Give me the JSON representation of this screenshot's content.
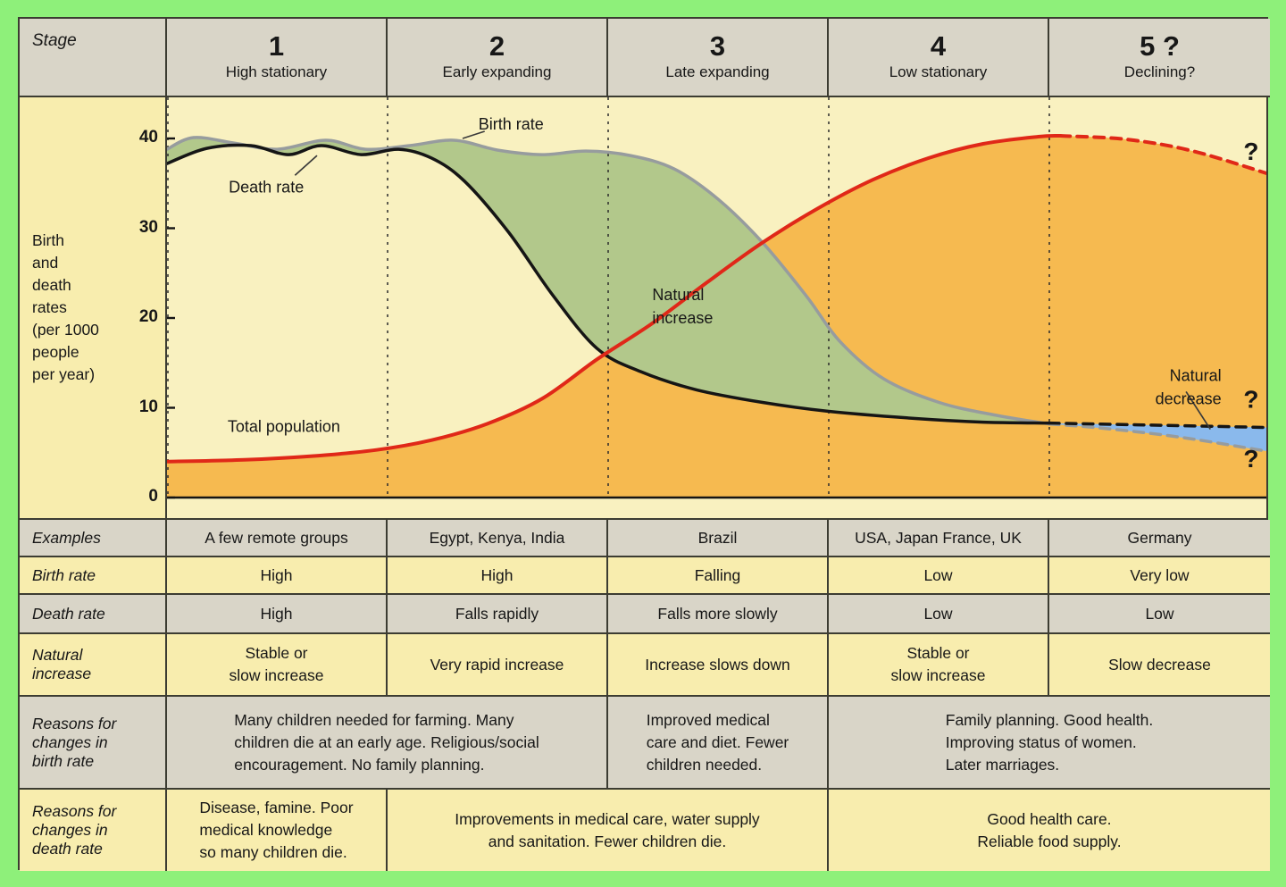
{
  "palette": {
    "page_bg": "#8ef07a",
    "grid_line": "#3c3c32",
    "cell_gray": "#d9d5c8",
    "cell_yellow": "#f8edae",
    "chart_bg": "#f9f1c0",
    "area_orange": "#f6ba50",
    "area_green": "#b2c88b",
    "area_blue": "#8ab9ec",
    "line_red": "#e02818",
    "line_gray": "#979c9e",
    "line_black": "#151515",
    "text": "#171717"
  },
  "header": {
    "stage_label": "Stage",
    "stages": [
      {
        "num": "1",
        "name": "High stationary"
      },
      {
        "num": "2",
        "name": "Early expanding"
      },
      {
        "num": "3",
        "name": "Late expanding"
      },
      {
        "num": "4",
        "name": "Low stationary"
      },
      {
        "num": "5 ?",
        "name": "Declining?"
      }
    ]
  },
  "chart_data": {
    "type": "line+area",
    "title": "Demographic transition model",
    "ylabel": "Birth\nand\ndeath\nrates\n(per 1000\npeople\nper year)",
    "yticks": [
      0,
      10,
      20,
      30,
      40
    ],
    "ylim": [
      0,
      44.5
    ],
    "x_axis": "five equal stages (1-5), dashed dividers between stages",
    "series": [
      {
        "name": "Birth rate",
        "color": "#979c9e",
        "width": 3.5,
        "dash_from": 4,
        "points": [
          [
            0,
            38.8
          ],
          [
            0.12,
            40.1
          ],
          [
            0.3,
            39.5
          ],
          [
            0.5,
            38.8
          ],
          [
            0.72,
            39.8
          ],
          [
            0.9,
            38.8
          ],
          [
            1.1,
            39.2
          ],
          [
            1.3,
            39.8
          ],
          [
            1.5,
            38.7
          ],
          [
            1.7,
            38.2
          ],
          [
            1.9,
            38.6
          ],
          [
            2.1,
            38.1
          ],
          [
            2.3,
            36.6
          ],
          [
            2.5,
            33.2
          ],
          [
            2.7,
            28.4
          ],
          [
            2.9,
            22.4
          ],
          [
            3.05,
            17.4
          ],
          [
            3.25,
            13.2
          ],
          [
            3.5,
            10.6
          ],
          [
            3.75,
            9.2
          ],
          [
            4,
            8.2
          ],
          [
            4.25,
            7.7
          ],
          [
            4.6,
            6.7
          ],
          [
            5,
            5.1
          ]
        ]
      },
      {
        "name": "Death rate",
        "color": "#151515",
        "width": 3.5,
        "dash_from": 4,
        "points": [
          [
            0,
            37.2
          ],
          [
            0.18,
            38.9
          ],
          [
            0.38,
            39.2
          ],
          [
            0.55,
            38.2
          ],
          [
            0.7,
            39.2
          ],
          [
            0.88,
            38.2
          ],
          [
            1.05,
            38.8
          ],
          [
            1.2,
            37.8
          ],
          [
            1.35,
            35.2
          ],
          [
            1.55,
            29.5
          ],
          [
            1.75,
            22.5
          ],
          [
            1.95,
            16.6
          ],
          [
            2.15,
            14
          ],
          [
            2.4,
            12
          ],
          [
            2.7,
            10.6
          ],
          [
            3,
            9.6
          ],
          [
            3.4,
            8.8
          ],
          [
            3.7,
            8.4
          ],
          [
            4,
            8.3
          ],
          [
            4.4,
            8.1
          ],
          [
            5,
            7.8
          ]
        ]
      },
      {
        "name": "Total population",
        "color": "#e02818",
        "width": 4,
        "dash_from": 4.05,
        "points": [
          [
            0,
            4
          ],
          [
            0.35,
            4.2
          ],
          [
            0.65,
            4.6
          ],
          [
            0.95,
            5.3
          ],
          [
            1.2,
            6.4
          ],
          [
            1.45,
            8.2
          ],
          [
            1.7,
            11
          ],
          [
            1.95,
            15.4
          ],
          [
            2.2,
            19.4
          ],
          [
            2.45,
            24
          ],
          [
            2.7,
            28.4
          ],
          [
            2.95,
            32.2
          ],
          [
            3.2,
            35.4
          ],
          [
            3.45,
            37.8
          ],
          [
            3.7,
            39.4
          ],
          [
            3.95,
            40.2
          ],
          [
            4.05,
            40.3
          ],
          [
            4.35,
            39.9
          ],
          [
            4.65,
            38.6
          ],
          [
            5,
            36
          ]
        ]
      }
    ],
    "areas": [
      {
        "name": "population-fill",
        "color": "#f6ba50",
        "top": "Total population",
        "bottom": "baseline",
        "from": 0,
        "to": 5
      },
      {
        "name": "natural-increase",
        "color": "#b2c88b",
        "top": "Birth rate",
        "bottom": "Death rate",
        "from": 0,
        "to": 4
      },
      {
        "name": "natural-decrease",
        "color": "#8ab9ec",
        "top": "Death rate",
        "bottom": "Birth rate",
        "from": 4,
        "to": 5
      }
    ],
    "annotations": [
      {
        "text": "Birth rate",
        "u": 1.56,
        "r": 41.6,
        "anchor": "middle"
      },
      {
        "text": "Death rate",
        "u": 0.45,
        "r": 34.6,
        "anchor": "middle"
      },
      {
        "text": "Total population",
        "u": 0.53,
        "r": 7.9,
        "anchor": "middle"
      },
      {
        "text": "Natural\nincrease",
        "u": 2.2,
        "r": 22.6,
        "anchor": "start"
      },
      {
        "text": "Natural\ndecrease",
        "u": 4.78,
        "r": 13.6,
        "anchor": "end"
      },
      {
        "text": "?",
        "u": 4.88,
        "r": 38.2,
        "anchor": "start",
        "big": true
      },
      {
        "text": "?",
        "u": 4.88,
        "r": 10.6,
        "anchor": "start",
        "big": true
      },
      {
        "text": "?",
        "u": 4.88,
        "r": 4.0,
        "anchor": "start",
        "big": true
      }
    ],
    "leaders": [
      {
        "from": [
          1.44,
          40.8
        ],
        "to": [
          1.34,
          40.0
        ]
      },
      {
        "from": [
          0.58,
          35.9
        ],
        "to": [
          0.68,
          38.1
        ]
      },
      {
        "from": [
          4.62,
          11.8
        ],
        "to": [
          4.73,
          7.6
        ]
      }
    ]
  },
  "table": {
    "rows": [
      {
        "label": "Examples",
        "bg": "gray",
        "cells": [
          {
            "text": "A few remote groups",
            "span": 1
          },
          {
            "text": "Egypt, Kenya, India",
            "span": 1
          },
          {
            "text": "Brazil",
            "span": 1
          },
          {
            "text": "USA, Japan France, UK",
            "span": 1
          },
          {
            "text": "Germany",
            "span": 1
          }
        ]
      },
      {
        "label": "Birth rate",
        "bg": "yellow",
        "cells": [
          {
            "text": "High",
            "span": 1
          },
          {
            "text": "High",
            "span": 1
          },
          {
            "text": "Falling",
            "span": 1
          },
          {
            "text": "Low",
            "span": 1
          },
          {
            "text": "Very low",
            "span": 1
          }
        ]
      },
      {
        "label": "Death rate",
        "bg": "gray",
        "cells": [
          {
            "text": "High",
            "span": 1
          },
          {
            "text": "Falls rapidly",
            "span": 1
          },
          {
            "text": "Falls more slowly",
            "span": 1
          },
          {
            "text": "Low",
            "span": 1
          },
          {
            "text": "Low",
            "span": 1
          }
        ]
      },
      {
        "label": "Natural\nincrease",
        "bg": "yellow",
        "cells": [
          {
            "text": "Stable or\nslow increase",
            "span": 1
          },
          {
            "text": "Very rapid increase",
            "span": 1
          },
          {
            "text": "Increase slows down",
            "span": 1
          },
          {
            "text": "Stable or\nslow increase",
            "span": 1
          },
          {
            "text": "Slow decrease",
            "span": 1
          }
        ]
      },
      {
        "label": "Reasons for\nchanges in\nbirth rate",
        "bg": "gray",
        "cells": [
          {
            "text": "Many children needed for farming. Many\nchildren die at an early age. Religious/social\nencouragement. No family planning.",
            "span": 2,
            "align": "left"
          },
          {
            "text": "Improved medical\ncare and diet. Fewer\nchildren needed.",
            "span": 1,
            "align": "left"
          },
          {
            "text": "Family planning. Good health.\nImproving status of women.\nLater marriages.",
            "span": 2,
            "align": "left"
          }
        ]
      },
      {
        "label": "Reasons for\nchanges in\ndeath rate",
        "bg": "yellow",
        "cells": [
          {
            "text": "Disease, famine. Poor\nmedical knowledge\nso many children die.",
            "span": 1,
            "align": "left"
          },
          {
            "text": "Improvements in medical care, water supply\nand sanitation. Fewer children die.",
            "span": 2,
            "align": "center"
          },
          {
            "text": "Good health care.\nReliable food supply.",
            "span": 2,
            "align": "center"
          }
        ]
      }
    ]
  }
}
